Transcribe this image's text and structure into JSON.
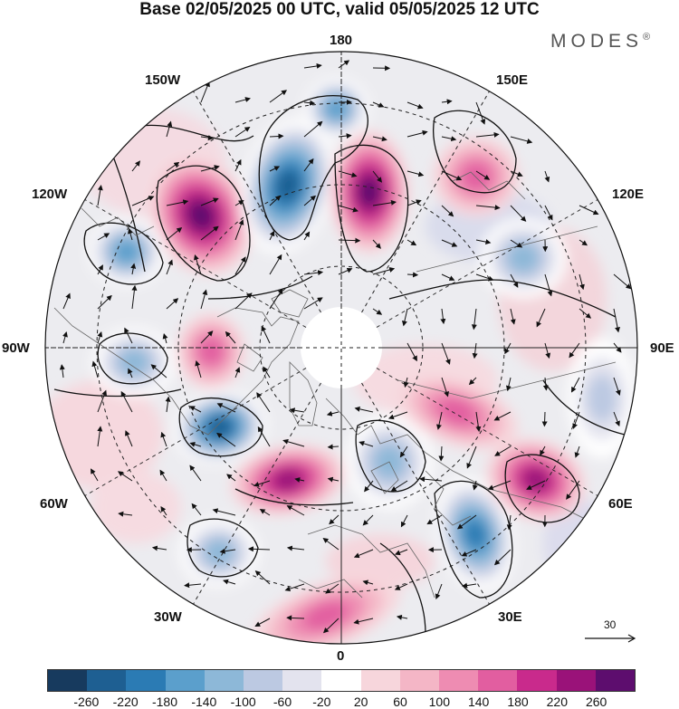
{
  "title": "Base 02/05/2025 00 UTC, valid 05/05/2025 12 UTC",
  "brand": "MODES",
  "brand_mark": "®",
  "longitude_labels": {
    "top": "180",
    "top_left": "150W",
    "top_right": "150E",
    "left_upper": "120W",
    "right_upper": "120E",
    "left": "90W",
    "right": "90E",
    "left_lower": "60W",
    "right_lower": "60E",
    "bottom_left": "30W",
    "bottom_right": "30E",
    "bottom": "0"
  },
  "wind_scale_label": "30",
  "colorbar": {
    "colors": [
      "#173a5e",
      "#1e5f92",
      "#2b7bb4",
      "#5b9fcc",
      "#8db8d8",
      "#bcc9e2",
      "#e3e3ee",
      "#ffffff",
      "#f7d6dc",
      "#f4b6c6",
      "#ee8cb2",
      "#e25ea0",
      "#c92a8c",
      "#9a1279",
      "#5d0d6e"
    ],
    "tick_labels": [
      "-260",
      "-220",
      "-180",
      "-140",
      "-100",
      "-60",
      "-20",
      "20",
      "60",
      "100",
      "140",
      "180",
      "220",
      "260"
    ]
  },
  "anomaly_centers": [
    {
      "name": "ridge-150w",
      "sign": 1,
      "strength": 230
    },
    {
      "name": "trough-170w",
      "sign": -1,
      "strength": 250
    },
    {
      "name": "ridge-170e",
      "sign": 1,
      "strength": 250
    },
    {
      "name": "trough-165w",
      "sign": -1,
      "strength": 150
    },
    {
      "name": "ridge-140e",
      "sign": 1,
      "strength": 130
    },
    {
      "name": "trough-120w",
      "sign": -1,
      "strength": 170
    },
    {
      "name": "trough-100e",
      "sign": -1,
      "strength": 100
    },
    {
      "name": "trough-90w",
      "sign": -1,
      "strength": 120
    },
    {
      "name": "ridge-80w",
      "sign": 1,
      "strength": 120
    },
    {
      "name": "trough-70w",
      "sign": -1,
      "strength": 230
    },
    {
      "name": "ridge-50w",
      "sign": 1,
      "strength": 190
    },
    {
      "name": "trough-40w",
      "sign": -1,
      "strength": 130
    },
    {
      "name": "trough-20e",
      "sign": -1,
      "strength": 120
    },
    {
      "name": "trough-35e",
      "sign": -1,
      "strength": 180
    },
    {
      "name": "ridge-60e",
      "sign": 1,
      "strength": 210
    },
    {
      "name": "ridge-75e",
      "sign": 1,
      "strength": 130
    },
    {
      "name": "trough-90e",
      "sign": -1,
      "strength": 80
    },
    {
      "name": "ridge-10w",
      "sign": 1,
      "strength": 100
    }
  ]
}
